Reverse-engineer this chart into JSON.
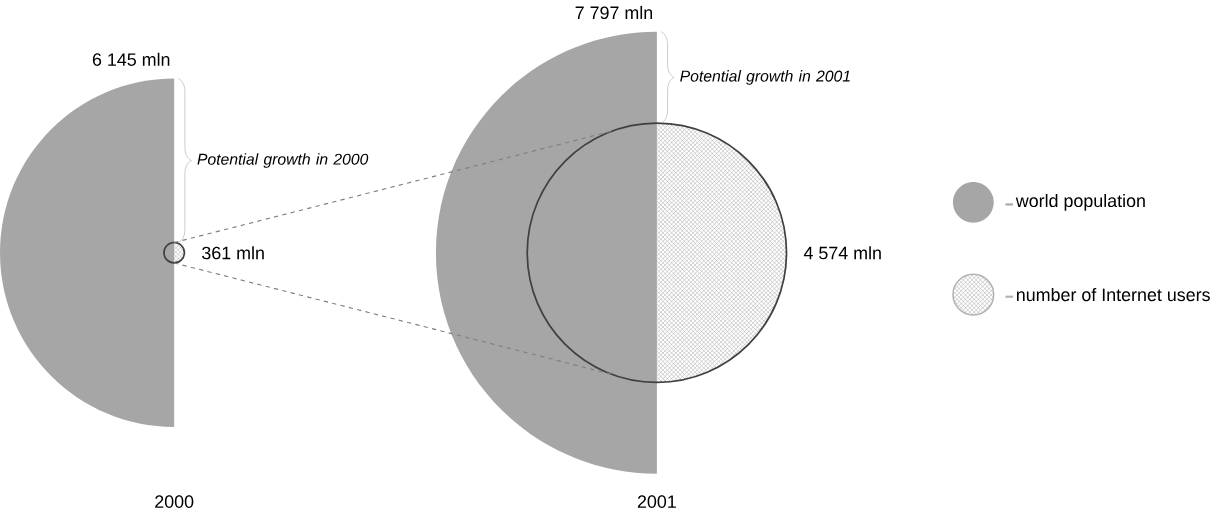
{
  "chart_data": {
    "type": "other",
    "categories": [
      "2000",
      "2001"
    ],
    "series": [
      {
        "name": "world population",
        "color": "#a6a6a6",
        "values": [
          6145,
          7797
        ],
        "value_labels": [
          "6 145 mln",
          "7 797 mln"
        ]
      },
      {
        "name": "number of Internet users",
        "color": "#b0b0b0",
        "values": [
          361,
          4574
        ],
        "value_labels": [
          "361 mln",
          "4 574 mln"
        ]
      }
    ],
    "annotations": [
      "Potential growth in 2000",
      "Potential growth in 2001"
    ],
    "legend": "right"
  }
}
